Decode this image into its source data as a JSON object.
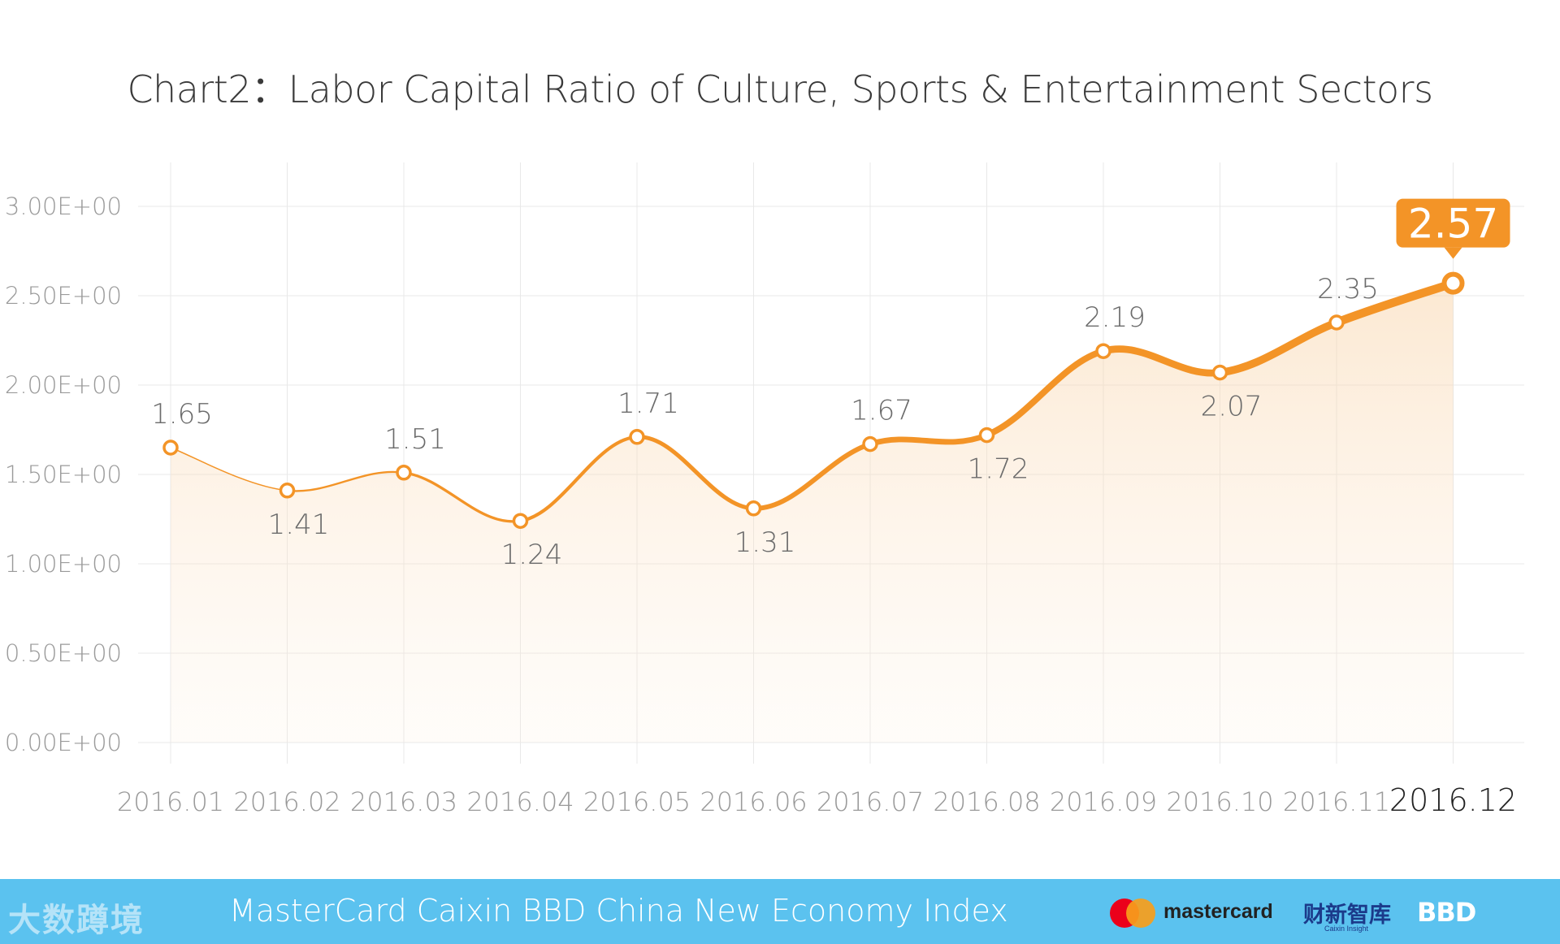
{
  "chart_data": {
    "type": "line",
    "title": "Chart2：Labor Capital Ratio of Culture, Sports & Entertainment Sectors",
    "xlabel": "",
    "ylabel": "",
    "categories": [
      "2016.01",
      "2016.02",
      "2016.03",
      "2016.04",
      "2016.05",
      "2016.06",
      "2016.07",
      "2016.08",
      "2016.09",
      "2016.10",
      "2016.11",
      "2016.12"
    ],
    "values": [
      1.65,
      1.41,
      1.51,
      1.24,
      1.71,
      1.31,
      1.67,
      1.72,
      2.19,
      2.07,
      2.35,
      2.57
    ],
    "value_labels": [
      "1.65",
      "1.41",
      "1.51",
      "1.24",
      "1.71",
      "1.31",
      "1.67",
      "1.72",
      "2.19",
      "2.07",
      "2.35",
      "2.57"
    ],
    "yticks": [
      "0.00E+00",
      "0.50E+00",
      "1.00E+00",
      "1.50E+00",
      "2.00E+00",
      "2.50E+00",
      "3.00E+00"
    ],
    "ylim": [
      0,
      3
    ],
    "grid": true,
    "highlight_last": true,
    "colors": {
      "line": "#f39427",
      "fill": "#fde9d2",
      "callout": "#f39427",
      "grid": "#e8e8e8"
    }
  },
  "footer": {
    "watermark": "大数蹲境",
    "text": "MasterCard Caixin BBD China New Economy Index",
    "mastercard_label": "mastercard",
    "caixin_label": "财新智库",
    "caixin_sub": "Caixin Insight",
    "bbd_label": "BBD",
    "background": "#5bc2ef"
  }
}
